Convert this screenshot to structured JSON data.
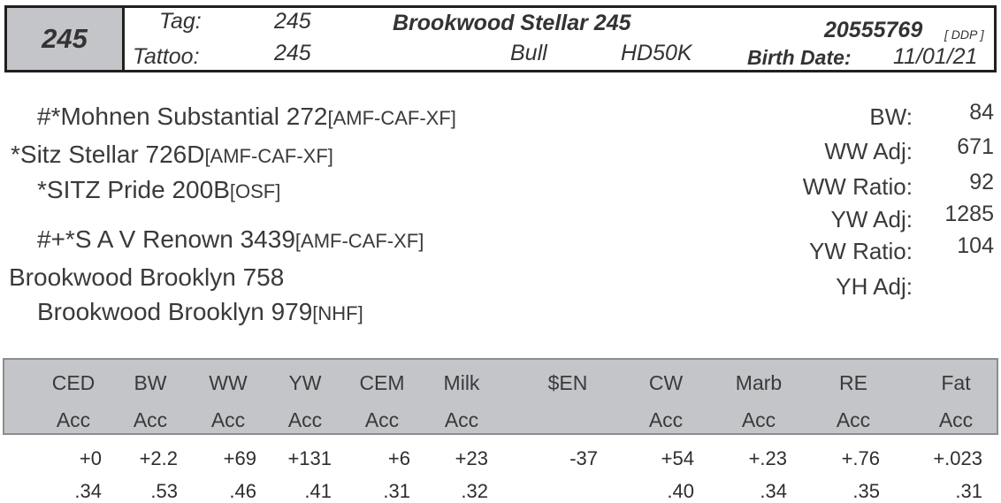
{
  "header": {
    "lot": "245",
    "tag_label": "Tag:",
    "tag_value": "245",
    "tattoo_label": "Tattoo:",
    "tattoo_value": "245",
    "animal_name": "Brookwood Stellar 245",
    "registration": "20555769",
    "registration_suffix": "[ DDP ]",
    "sex": "Bull",
    "test": "HD50K",
    "birth_date_label": "Birth Date:",
    "birth_date": "11/01/21"
  },
  "pedigree": {
    "sire_sire": {
      "name": "#*Mohnen Substantial 272",
      "tags": "[AMF-CAF-XF]"
    },
    "sire": {
      "name": "*Sitz Stellar 726D",
      "tags": "[AMF-CAF-XF]"
    },
    "sire_dam": {
      "name": "*SITZ Pride 200B",
      "tags": "[OSF]"
    },
    "dam_sire": {
      "name": "#+*S A V Renown 3439",
      "tags": "[AMF-CAF-XF]"
    },
    "dam": {
      "name": "Brookwood Brooklyn 758",
      "tags": ""
    },
    "dam_dam": {
      "name": "Brookwood Brooklyn 979",
      "tags": "[NHF]"
    }
  },
  "performance": {
    "bw": {
      "label": "BW:",
      "value": "84"
    },
    "ww_adj": {
      "label": "WW Adj:",
      "value": "671"
    },
    "ww_ratio": {
      "label": "WW Ratio:",
      "value": "92"
    },
    "yw_adj": {
      "label": "YW Adj:",
      "value": "1285"
    },
    "yw_ratio": {
      "label": "YW Ratio:",
      "value": "104"
    },
    "yh_adj": {
      "label": "YH Adj:",
      "value": ""
    }
  },
  "epds": [
    {
      "trait": "CED",
      "acc_label": "Acc",
      "value": "+0",
      "acc": ".34"
    },
    {
      "trait": "BW",
      "acc_label": "Acc",
      "value": "+2.2",
      "acc": ".53"
    },
    {
      "trait": "WW",
      "acc_label": "Acc",
      "value": "+69",
      "acc": ".46"
    },
    {
      "trait": "YW",
      "acc_label": "Acc",
      "value": "+131",
      "acc": ".41"
    },
    {
      "trait": "CEM",
      "acc_label": "Acc",
      "value": "+6",
      "acc": ".31"
    },
    {
      "trait": "Milk",
      "acc_label": "Acc",
      "value": "+23",
      "acc": ".32"
    },
    {
      "trait": "$EN",
      "acc_label": "",
      "value": "-37",
      "acc": ""
    },
    {
      "trait": "CW",
      "acc_label": "Acc",
      "value": "+54",
      "acc": ".40"
    },
    {
      "trait": "Marb",
      "acc_label": "Acc",
      "value": "+.23",
      "acc": ".34"
    },
    {
      "trait": "RE",
      "acc_label": "Acc",
      "value": "+.76",
      "acc": ".35"
    },
    {
      "trait": "Fat",
      "acc_label": "Acc",
      "value": "+.023",
      "acc": ".31"
    }
  ]
}
